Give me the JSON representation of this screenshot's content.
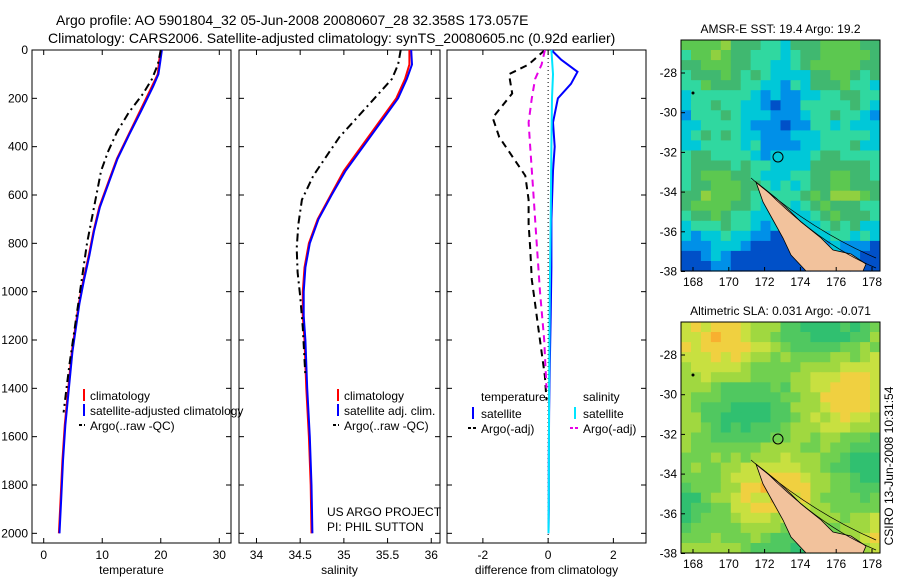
{
  "header": {
    "line1": "Argo profile: AO 5901804_32 05-Jun-2008 20080607_28 32.358S 173.057E",
    "line2": "Climatology: CARS2006. Satellite-adjusted climatology: synTS_20080605.nc (0.92d earlier)"
  },
  "colors": {
    "climatology": "#ff0000",
    "satellite": "#0000ff",
    "argo": "#000000",
    "salinity_sat": "#00e5ff",
    "salinity_argo": "#e600e6",
    "land": "#f2c29c"
  },
  "credit": {
    "line1": "US ARGO PROJECT",
    "line2": "PI: PHIL SUTTON"
  },
  "timestamp": "CSIRO 13-Jun-2008 10:31:54",
  "chart_data": [
    {
      "type": "line",
      "xlabel": "temperature",
      "ylabel": "",
      "xlim": [
        -2,
        32
      ],
      "ylim": [
        2040,
        0
      ],
      "y_reversed": true,
      "xticks": [
        "0",
        "10",
        "20",
        "30"
      ],
      "yticks": [
        "0",
        "200",
        "400",
        "600",
        "800",
        "1000",
        "1200",
        "1400",
        "1600",
        "1800",
        "2000"
      ],
      "legend": [
        "climatology",
        "satellite-adjusted climatology",
        "Argo(..raw -QC)"
      ],
      "series": [
        {
          "name": "climatology",
          "x": [
            20,
            19.7,
            19.5,
            18.5,
            16.5,
            14.5,
            12.5,
            11,
            9.5,
            8.5,
            7.7,
            6.8,
            6,
            5.4,
            4.8,
            4.2,
            3.6,
            3.2,
            2.9,
            2.6
          ],
          "y": [
            0,
            50,
            100,
            150,
            250,
            350,
            450,
            550,
            650,
            750,
            850,
            950,
            1050,
            1150,
            1250,
            1400,
            1550,
            1700,
            1850,
            2000
          ]
        },
        {
          "name": "satellite-adjusted climatology",
          "x": [
            20.2,
            19.9,
            19.6,
            18.7,
            16.7,
            14.6,
            12.6,
            11.1,
            9.6,
            8.6,
            7.8,
            6.9,
            6.1,
            5.5,
            4.9,
            4.3,
            3.7,
            3.3,
            3,
            2.7
          ],
          "y": [
            0,
            50,
            100,
            150,
            250,
            350,
            450,
            550,
            650,
            750,
            850,
            950,
            1050,
            1150,
            1250,
            1400,
            1550,
            1700,
            1850,
            2000
          ]
        },
        {
          "name": "Argo(..raw -QC)",
          "x": [
            20,
            19.5,
            18.5,
            17,
            14.5,
            12.5,
            11,
            9.8,
            9,
            8.2,
            7.4,
            6.8,
            6.2,
            5.6,
            5,
            4.4,
            3.9,
            3.4
          ],
          "y": [
            0,
            60,
            120,
            180,
            260,
            340,
            420,
            500,
            600,
            700,
            800,
            900,
            1000,
            1100,
            1200,
            1300,
            1400,
            1500
          ]
        }
      ]
    },
    {
      "type": "line",
      "xlabel": "salinity",
      "ylabel": "",
      "xlim": [
        33.8,
        36.1
      ],
      "ylim": [
        2040,
        0
      ],
      "y_reversed": true,
      "xticks": [
        "34",
        "34.5",
        "35",
        "35.5",
        "36"
      ],
      "legend": [
        "climatology",
        "satellite adj. clim.",
        "Argo(..raw -QC)"
      ],
      "series": [
        {
          "name": "climatology",
          "x": [
            35.75,
            35.75,
            35.7,
            35.6,
            35.4,
            35.2,
            35.0,
            34.85,
            34.7,
            34.6,
            34.55,
            34.53,
            34.53,
            34.55,
            34.57,
            34.6,
            34.62,
            34.63
          ],
          "y": [
            0,
            60,
            120,
            200,
            300,
            400,
            500,
            600,
            700,
            800,
            900,
            1000,
            1100,
            1200,
            1400,
            1600,
            1800,
            2000
          ]
        },
        {
          "name": "satellite adj. clim.",
          "x": [
            35.77,
            35.78,
            35.72,
            35.62,
            35.42,
            35.22,
            35.02,
            34.86,
            34.71,
            34.61,
            34.56,
            34.54,
            34.54,
            34.56,
            34.58,
            34.61,
            34.63,
            34.64
          ],
          "y": [
            0,
            60,
            120,
            200,
            300,
            400,
            500,
            600,
            700,
            800,
            900,
            1000,
            1100,
            1200,
            1400,
            1600,
            1800,
            2000
          ]
        },
        {
          "name": "Argo(..raw -QC)",
          "x": [
            35.65,
            35.62,
            35.55,
            35.35,
            35.15,
            34.95,
            34.8,
            34.65,
            34.52,
            34.48,
            34.46,
            34.47,
            34.5,
            34.53,
            34.56
          ],
          "y": [
            0,
            60,
            120,
            200,
            280,
            360,
            440,
            520,
            620,
            720,
            820,
            920,
            1020,
            1150,
            1350
          ]
        }
      ]
    },
    {
      "type": "line",
      "xlabel": "difference from climatology",
      "ylabel": "",
      "xlim": [
        -3.1,
        3.0
      ],
      "ylim": [
        2040,
        0
      ],
      "y_reversed": true,
      "xticks": [
        "-2",
        "0",
        "2"
      ],
      "legend_left_title": "temperature",
      "legend_right_title": "salinity",
      "legend_left": [
        "satellite",
        "Argo(-adj)"
      ],
      "legend_right": [
        "satellite",
        "Argo(-adj)"
      ],
      "series": [
        {
          "name": "satellite",
          "x": [
            0.1,
            0.4,
            0.9,
            0.7,
            0.3,
            0.15,
            0.2,
            0.15,
            0.1,
            0.1,
            0.08,
            0.05,
            0.03,
            0.02,
            0.02,
            0.01
          ],
          "y": [
            0,
            40,
            90,
            140,
            200,
            300,
            400,
            500,
            700,
            900,
            1100,
            1300,
            1500,
            1700,
            1900,
            2000
          ]
        },
        {
          "name": "Argo(-adj)",
          "x": [
            -0.1,
            -0.6,
            -1.2,
            -1.1,
            -1.7,
            -1.5,
            -1.1,
            -0.7,
            -0.6,
            -0.6,
            -0.55,
            -0.5,
            -0.4,
            -0.3,
            -0.2,
            -0.1,
            -0.05
          ],
          "y": [
            0,
            60,
            100,
            180,
            280,
            360,
            440,
            520,
            620,
            720,
            820,
            950,
            1050,
            1150,
            1250,
            1350,
            1450
          ]
        },
        {
          "name": "salinity satellite",
          "x": [
            0.1,
            0.15,
            0.12,
            0.1,
            0.08,
            0.05,
            0.03,
            0.02,
            0.01
          ],
          "y": [
            0,
            100,
            200,
            400,
            700,
            1000,
            1400,
            1800,
            2000
          ]
        },
        {
          "name": "salinity Argo(-adj)",
          "x": [
            -0.1,
            -0.2,
            -0.4,
            -0.5,
            -0.6,
            -0.55,
            -0.45,
            -0.35,
            -0.25,
            -0.12,
            -0.05
          ],
          "y": [
            0,
            60,
            120,
            200,
            300,
            400,
            600,
            800,
            1000,
            1200,
            1400
          ]
        }
      ]
    }
  ],
  "maps": [
    {
      "title": "AMSR-E SST: 19.4 Argo: 19.2",
      "xticks": [
        "168",
        "170",
        "172",
        "174",
        "176",
        "178"
      ],
      "yticks": [
        "-28",
        "-30",
        "-32",
        "-34",
        "-36",
        "-38"
      ],
      "palette": "sst"
    },
    {
      "title": "Altimetric SLA: 0.031 Argo: -0.071",
      "xticks": [
        "168",
        "170",
        "172",
        "174",
        "176",
        "178"
      ],
      "yticks": [
        "-28",
        "-30",
        "-32",
        "-34",
        "-36",
        "-38"
      ],
      "palette": "sla"
    }
  ]
}
